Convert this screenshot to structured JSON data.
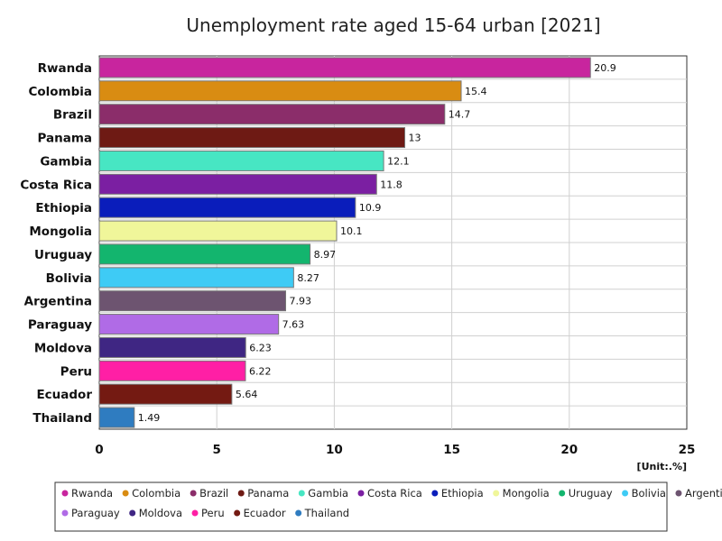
{
  "chart_data": {
    "type": "bar",
    "orientation": "horizontal",
    "title": "Unemployment rate aged 15-64 urban [2021]",
    "unit": "[Unit:.%]",
    "xlim": [
      0,
      25
    ],
    "x_ticks": [
      0,
      5,
      10,
      15,
      20,
      25
    ],
    "grid": true,
    "legend_position": "bottom",
    "categories": [
      "Rwanda",
      "Colombia",
      "Brazil",
      "Panama",
      "Gambia",
      "Costa Rica",
      "Ethiopia",
      "Mongolia",
      "Uruguay",
      "Bolivia",
      "Argentina",
      "Paraguay",
      "Moldova",
      "Peru",
      "Ecuador",
      "Thailand"
    ],
    "values": [
      20.9,
      15.4,
      14.7,
      13,
      12.1,
      11.8,
      10.9,
      10.1,
      8.97,
      8.27,
      7.93,
      7.63,
      6.23,
      6.22,
      5.64,
      1.49
    ],
    "value_labels": [
      "20.9",
      "15.4",
      "14.7",
      "13",
      "12.1",
      "11.8",
      "10.9",
      "10.1",
      "8.97",
      "8.27",
      "7.93",
      "7.63",
      "6.23",
      "6.22",
      "5.64",
      "1.49"
    ],
    "colors": [
      "#c8259e",
      "#d98c12",
      "#8b2d6a",
      "#6e1a14",
      "#47e6c3",
      "#7b1fa2",
      "#0a1dbb",
      "#f0f69a",
      "#13b56e",
      "#3ecbf5",
      "#6d5470",
      "#b06be6",
      "#3f2683",
      "#ff1fa5",
      "#741a12",
      "#2f7cc0"
    ]
  }
}
